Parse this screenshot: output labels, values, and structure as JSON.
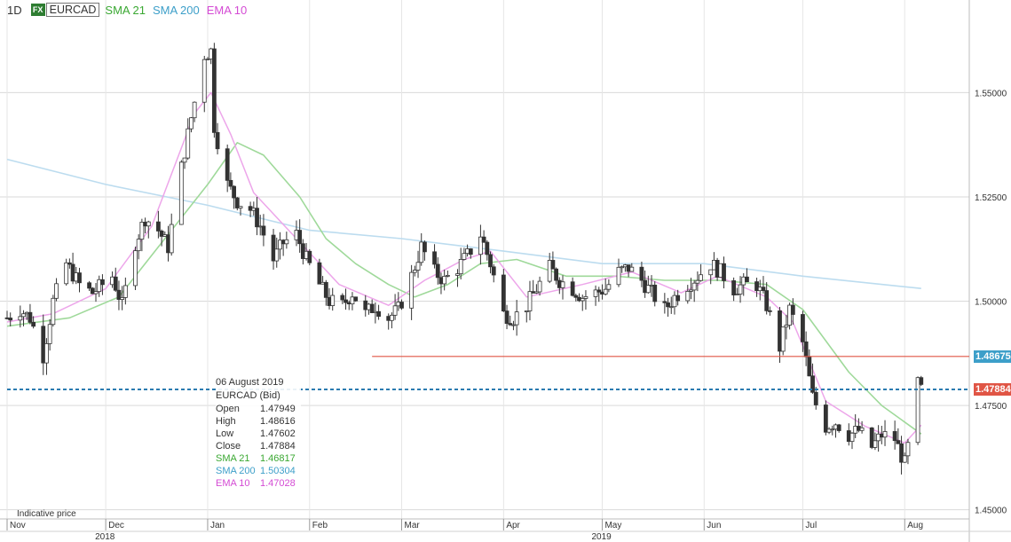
{
  "header": {
    "timeframe": "1D",
    "fx_badge": "FX",
    "symbol": "EURCAD",
    "indicators": [
      {
        "label": "SMA 21",
        "color": "#3aa832"
      },
      {
        "label": "SMA 200",
        "color": "#3d9fc9"
      },
      {
        "label": "EMA 10",
        "color": "#d44bd4"
      }
    ]
  },
  "tooltip": {
    "date": "06 August 2019",
    "instrument": "EURCAD (Bid)",
    "rows": [
      {
        "label": "Open",
        "value": "1.47949",
        "color": "#333333"
      },
      {
        "label": "High",
        "value": "1.48616",
        "color": "#333333"
      },
      {
        "label": "Low",
        "value": "1.47602",
        "color": "#333333"
      },
      {
        "label": "Close",
        "value": "1.47884",
        "color": "#333333"
      },
      {
        "label": "SMA 21",
        "value": "1.46817",
        "color": "#3aa832"
      },
      {
        "label": "SMA 200",
        "value": "1.50304",
        "color": "#3d9fc9"
      },
      {
        "label": "EMA 10",
        "value": "1.47028",
        "color": "#d44bd4"
      }
    ]
  },
  "footer_note": "Indicative price",
  "price_badges": [
    {
      "value": "1.48675",
      "color": "#3d9fc9"
    },
    {
      "value": "1.47884",
      "color": "#e05545"
    }
  ],
  "chart_data": {
    "type": "candlestick",
    "symbol": "EURCAD",
    "timeframe": "1D",
    "y_ticks": [
      "1.55000",
      "1.52500",
      "1.50000",
      "1.47500",
      "1.45000"
    ],
    "ylim": [
      1.4478,
      1.5722
    ],
    "x_months": [
      {
        "label": "Nov",
        "date": "2018-11-01"
      },
      {
        "label": "Dec",
        "date": "2018-12-01"
      },
      {
        "label": "Jan",
        "date": "2019-01-01"
      },
      {
        "label": "Feb",
        "date": "2019-02-01"
      },
      {
        "label": "Mar",
        "date": "2019-03-01"
      },
      {
        "label": "Apr",
        "date": "2019-04-01"
      },
      {
        "label": "May",
        "date": "2019-05-01"
      },
      {
        "label": "Jun",
        "date": "2019-06-01"
      },
      {
        "label": "Jul",
        "date": "2019-07-01"
      },
      {
        "label": "Aug",
        "date": "2019-08-01"
      }
    ],
    "x_years": [
      {
        "label": "2018",
        "date": "2018-12-01"
      },
      {
        "label": "2019",
        "date": "2019-05-01"
      }
    ],
    "xlim": [
      "2018-11-01",
      "2019-08-12"
    ],
    "horizontal_lines": [
      {
        "price": 1.48675,
        "color": "#e05545",
        "style": "solid",
        "from": "2019-02-20"
      },
      {
        "price": 1.47884,
        "color": "#2b7bb0",
        "style": "dashed",
        "from": "2018-11-01"
      }
    ],
    "close_anchors": [
      [
        "2018-11-01",
        1.496
      ],
      [
        "2018-11-05",
        1.498
      ],
      [
        "2018-11-08",
        1.496
      ],
      [
        "2018-11-12",
        1.487
      ],
      [
        "2018-11-15",
        1.5
      ],
      [
        "2018-11-19",
        1.509
      ],
      [
        "2018-11-23",
        1.504
      ],
      [
        "2018-11-27",
        1.502
      ],
      [
        "2018-12-03",
        1.506
      ],
      [
        "2018-12-06",
        1.499
      ],
      [
        "2018-12-10",
        1.514
      ],
      [
        "2018-12-13",
        1.52
      ],
      [
        "2018-12-17",
        1.517
      ],
      [
        "2018-12-20",
        1.513
      ],
      [
        "2018-12-24",
        1.532
      ],
      [
        "2018-12-27",
        1.544
      ],
      [
        "2018-12-31",
        1.559
      ],
      [
        "2019-01-02",
        1.56
      ],
      [
        "2019-01-03",
        1.542
      ],
      [
        "2019-01-07",
        1.528
      ],
      [
        "2019-01-10",
        1.524
      ],
      [
        "2019-01-14",
        1.522
      ],
      [
        "2019-01-17",
        1.518
      ],
      [
        "2019-01-21",
        1.51
      ],
      [
        "2019-01-24",
        1.514
      ],
      [
        "2019-01-28",
        1.516
      ],
      [
        "2019-01-31",
        1.51
      ],
      [
        "2019-02-04",
        1.504
      ],
      [
        "2019-02-07",
        1.5
      ],
      [
        "2019-02-11",
        1.499
      ],
      [
        "2019-02-14",
        1.502
      ],
      [
        "2019-02-18",
        1.497
      ],
      [
        "2019-02-21",
        1.499
      ],
      [
        "2019-02-25",
        1.496
      ],
      [
        "2019-02-28",
        1.498
      ],
      [
        "2019-03-04",
        1.506
      ],
      [
        "2019-03-07",
        1.513
      ],
      [
        "2019-03-11",
        1.507
      ],
      [
        "2019-03-14",
        1.505
      ],
      [
        "2019-03-18",
        1.508
      ],
      [
        "2019-03-21",
        1.511
      ],
      [
        "2019-03-25",
        1.516
      ],
      [
        "2019-03-28",
        1.509
      ],
      [
        "2019-04-01",
        1.497
      ],
      [
        "2019-04-04",
        1.496
      ],
      [
        "2019-04-08",
        1.499
      ],
      [
        "2019-04-11",
        1.503
      ],
      [
        "2019-04-15",
        1.508
      ],
      [
        "2019-04-18",
        1.505
      ],
      [
        "2019-04-22",
        1.503
      ],
      [
        "2019-04-25",
        1.501
      ],
      [
        "2019-04-29",
        1.502
      ],
      [
        "2019-05-02",
        1.503
      ],
      [
        "2019-05-06",
        1.507
      ],
      [
        "2019-05-09",
        1.508
      ],
      [
        "2019-05-13",
        1.505
      ],
      [
        "2019-05-16",
        1.502
      ],
      [
        "2019-05-20",
        1.498
      ],
      [
        "2019-05-23",
        1.501
      ],
      [
        "2019-05-27",
        1.504
      ],
      [
        "2019-05-30",
        1.506
      ],
      [
        "2019-06-03",
        1.509
      ],
      [
        "2019-06-06",
        1.507
      ],
      [
        "2019-06-10",
        1.503
      ],
      [
        "2019-06-13",
        1.504
      ],
      [
        "2019-06-17",
        1.504
      ],
      [
        "2019-06-20",
        1.499
      ],
      [
        "2019-06-24",
        1.489
      ],
      [
        "2019-06-27",
        1.498
      ],
      [
        "2019-07-01",
        1.49
      ],
      [
        "2019-07-04",
        1.477
      ],
      [
        "2019-07-08",
        1.47
      ],
      [
        "2019-07-11",
        1.471
      ],
      [
        "2019-07-15",
        1.468
      ],
      [
        "2019-07-18",
        1.469
      ],
      [
        "2019-07-22",
        1.465
      ],
      [
        "2019-07-25",
        1.468
      ],
      [
        "2019-07-29",
        1.467
      ],
      [
        "2019-08-01",
        1.461
      ],
      [
        "2019-08-02",
        1.465
      ],
      [
        "2019-08-05",
        1.48
      ],
      [
        "2019-08-06",
        1.47884
      ]
    ],
    "sma21": [
      [
        "2018-11-01",
        1.494
      ],
      [
        "2018-11-20",
        1.496
      ],
      [
        "2018-12-05",
        1.501
      ],
      [
        "2018-12-20",
        1.516
      ],
      [
        "2019-01-01",
        1.528
      ],
      [
        "2019-01-10",
        1.538
      ],
      [
        "2019-01-18",
        1.535
      ],
      [
        "2019-01-29",
        1.525
      ],
      [
        "2019-02-06",
        1.515
      ],
      [
        "2019-02-15",
        1.509
      ],
      [
        "2019-02-25",
        1.504
      ],
      [
        "2019-03-05",
        1.501
      ],
      [
        "2019-03-15",
        1.504
      ],
      [
        "2019-03-25",
        1.509
      ],
      [
        "2019-04-05",
        1.51
      ],
      [
        "2019-04-20",
        1.506
      ],
      [
        "2019-05-05",
        1.506
      ],
      [
        "2019-05-20",
        1.505
      ],
      [
        "2019-06-05",
        1.505
      ],
      [
        "2019-06-20",
        1.504
      ],
      [
        "2019-07-01",
        1.498
      ],
      [
        "2019-07-15",
        1.483
      ],
      [
        "2019-07-25",
        1.475
      ],
      [
        "2019-08-06",
        1.46817
      ]
    ],
    "sma200": [
      [
        "2018-11-01",
        1.534
      ],
      [
        "2018-12-01",
        1.528
      ],
      [
        "2019-01-01",
        1.523
      ],
      [
        "2019-02-01",
        1.517
      ],
      [
        "2019-03-01",
        1.515
      ],
      [
        "2019-04-01",
        1.512
      ],
      [
        "2019-05-01",
        1.509
      ],
      [
        "2019-06-01",
        1.509
      ],
      [
        "2019-07-01",
        1.506
      ],
      [
        "2019-08-06",
        1.50304
      ]
    ],
    "ema10": [
      [
        "2018-11-01",
        1.495
      ],
      [
        "2018-11-15",
        1.497
      ],
      [
        "2018-12-01",
        1.503
      ],
      [
        "2018-12-15",
        1.518
      ],
      [
        "2018-12-28",
        1.545
      ],
      [
        "2019-01-02",
        1.55
      ],
      [
        "2019-01-08",
        1.54
      ],
      [
        "2019-01-15",
        1.526
      ],
      [
        "2019-01-28",
        1.515
      ],
      [
        "2019-02-10",
        1.504
      ],
      [
        "2019-02-25",
        1.499
      ],
      [
        "2019-03-08",
        1.505
      ],
      [
        "2019-03-20",
        1.51
      ],
      [
        "2019-03-28",
        1.512
      ],
      [
        "2019-04-08",
        1.501
      ],
      [
        "2019-04-25",
        1.504
      ],
      [
        "2019-05-10",
        1.507
      ],
      [
        "2019-05-25",
        1.502
      ],
      [
        "2019-06-05",
        1.506
      ],
      [
        "2019-06-20",
        1.501
      ],
      [
        "2019-06-28",
        1.495
      ],
      [
        "2019-07-08",
        1.476
      ],
      [
        "2019-07-20",
        1.47
      ],
      [
        "2019-08-01",
        1.466
      ],
      [
        "2019-08-06",
        1.47028
      ]
    ],
    "colors": {
      "candle": "#333333",
      "grid": "#d9d9d9",
      "sma21": "#9fd99a",
      "sma200": "#bcdcef",
      "ema10": "#eda6ea"
    }
  }
}
